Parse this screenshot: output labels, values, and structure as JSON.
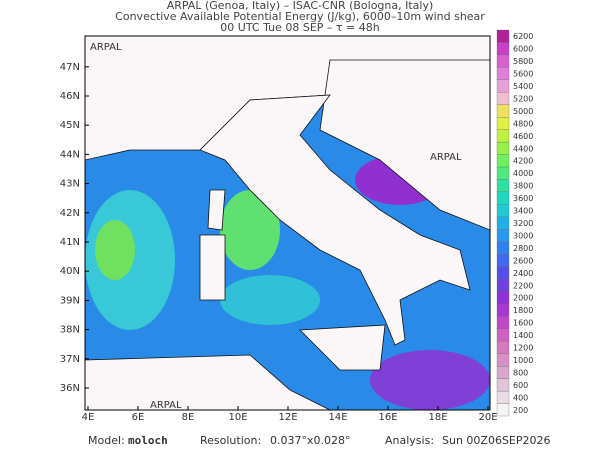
{
  "header": {
    "line1": "ARPAL (Genoa, Italy)  –  ISAC-CNR (Bologna, Italy)",
    "line2": "Convective Available Potential Energy (J/kg), 6000–10m wind shear",
    "line3": "00 UTC Tue 08 SEP  –  τ = 48h"
  },
  "map": {
    "watermark": "ARPAL",
    "lat_labels": [
      "36N",
      "37N",
      "38N",
      "39N",
      "40N",
      "41N",
      "42N",
      "43N",
      "44N",
      "45N",
      "46N",
      "47N"
    ],
    "lon_labels": [
      "4E",
      "6E",
      "8E",
      "10E",
      "12E",
      "14E",
      "16E",
      "18E",
      "20E"
    ]
  },
  "colorbar": {
    "ticks": [
      200,
      400,
      600,
      800,
      1000,
      1200,
      1400,
      1600,
      1800,
      2000,
      2200,
      2400,
      2600,
      2800,
      3000,
      3200,
      3400,
      3600,
      3800,
      4000,
      4200,
      4400,
      4600,
      4800,
      5000,
      5200,
      5400,
      5600,
      5800,
      6000,
      6200
    ],
    "colors": [
      "#f4f4f4",
      "#e8dce6",
      "#e0c4d8",
      "#d8a8cc",
      "#d890c4",
      "#d878c0",
      "#d060c0",
      "#c048c8",
      "#a838d0",
      "#9030d8",
      "#7040e0",
      "#5050e8",
      "#4068f0",
      "#3080f0",
      "#2898f0",
      "#20b0e8",
      "#20c8d8",
      "#20d8c0",
      "#30e0a0",
      "#50e880",
      "#70f060",
      "#98f048",
      "#c0f040",
      "#e0f040",
      "#f0e060",
      "#f0c0d0",
      "#e8a0d8",
      "#e080d8",
      "#d860d0",
      "#c840c8",
      "#b02098"
    ]
  },
  "footer": {
    "model_label": "Model:",
    "model": "moloch",
    "resolution_label": "Resolution:",
    "resolution": "0.037°x0.028°",
    "analysis_label": "Analysis:",
    "analysis": "Sun 00Z06SEP2026"
  }
}
